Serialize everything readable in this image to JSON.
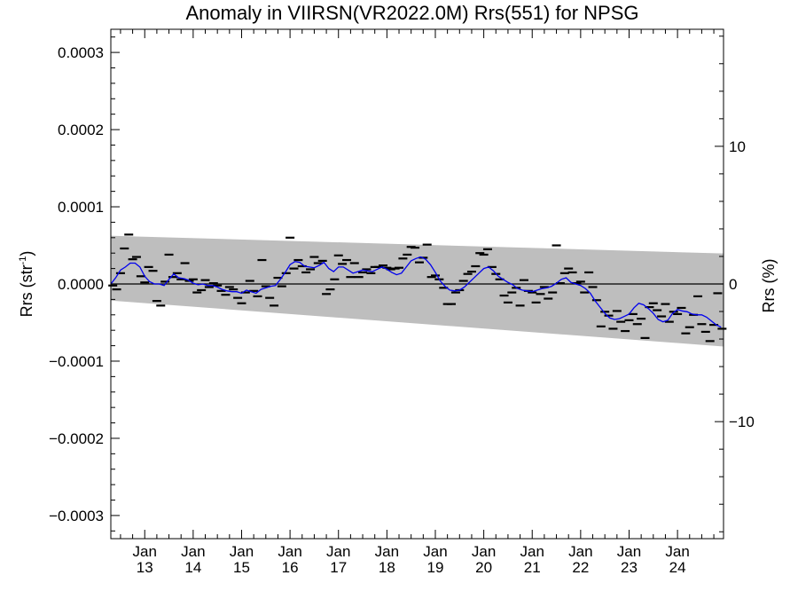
{
  "chart_data": {
    "type": "scatter",
    "title": "Anomaly in VIIRSN(VR2022.0M) Rrs(551) for NPSG",
    "ylabel": "Rrs (str",
    "ylabel_sup": "-1",
    "ylabel_close": ")",
    "y2label": "Rrs (%)",
    "xlim": [
      2012.3,
      2024.95
    ],
    "ylim": [
      -0.00033,
      0.00033
    ],
    "y2lim": [
      -18.5,
      18.5
    ],
    "y_ticks": [
      {
        "value": 0.0003,
        "label": "0.0003"
      },
      {
        "value": 0.0002,
        "label": "0.0002"
      },
      {
        "value": 0.0001,
        "label": "0.0001"
      },
      {
        "value": 0.0,
        "label": "0.0000"
      },
      {
        "value": -0.0001,
        "label": "−0.0001"
      },
      {
        "value": -0.0002,
        "label": "−0.0002"
      },
      {
        "value": -0.0003,
        "label": "−0.0003"
      }
    ],
    "y2_ticks": [
      {
        "value": 10,
        "label": "10"
      },
      {
        "value": 0,
        "label": "0"
      },
      {
        "value": -10,
        "label": "−10"
      }
    ],
    "x_ticks": [
      {
        "value": 2013,
        "month": "Jan",
        "year": "13"
      },
      {
        "value": 2014,
        "month": "Jan",
        "year": "14"
      },
      {
        "value": 2015,
        "month": "Jan",
        "year": "15"
      },
      {
        "value": 2016,
        "month": "Jan",
        "year": "16"
      },
      {
        "value": 2017,
        "month": "Jan",
        "year": "17"
      },
      {
        "value": 2018,
        "month": "Jan",
        "year": "18"
      },
      {
        "value": 2019,
        "month": "Jan",
        "year": "19"
      },
      {
        "value": 2020,
        "month": "Jan",
        "year": "20"
      },
      {
        "value": 2021,
        "month": "Jan",
        "year": "21"
      },
      {
        "value": 2022,
        "month": "Jan",
        "year": "22"
      },
      {
        "value": 2023,
        "month": "Jan",
        "year": "23"
      },
      {
        "value": 2024,
        "month": "Jan",
        "year": "24"
      }
    ],
    "band": {
      "x": [
        2012.3,
        2024.95
      ],
      "upper": [
        6.25e-05,
        3.95e-05
      ],
      "lower": [
        -2.15e-05,
        -8.1e-05
      ],
      "color": "#bebebe"
    },
    "zero_line_color": "#000000",
    "points_color": "#000000",
    "points": [
      [
        2012.34,
        -2e-06
      ],
      [
        2012.42,
        -7e-06
      ],
      [
        2012.5,
        1.4e-05
      ],
      [
        2012.58,
        4.6e-05
      ],
      [
        2012.67,
        6.4e-05
      ],
      [
        2012.75,
        3.2e-05
      ],
      [
        2012.83,
        3.5e-05
      ],
      [
        2012.92,
        1e-05
      ],
      [
        2013.0,
        2e-06
      ],
      [
        2013.08,
        2.2e-05
      ],
      [
        2013.17,
        1.7e-05
      ],
      [
        2013.25,
        -2.2e-05
      ],
      [
        2013.33,
        -2.8e-05
      ],
      [
        2013.42,
        3e-06
      ],
      [
        2013.5,
        3.8e-05
      ],
      [
        2013.58,
        9e-06
      ],
      [
        2013.67,
        1.4e-05
      ],
      [
        2013.75,
        6e-06
      ],
      [
        2013.83,
        2.7e-05
      ],
      [
        2013.92,
        4e-06
      ],
      [
        2014.0,
        6e-06
      ],
      [
        2014.08,
        -1.1e-05
      ],
      [
        2014.17,
        -8e-06
      ],
      [
        2014.25,
        5e-06
      ],
      [
        2014.33,
        -4e-06
      ],
      [
        2014.42,
        1e-06
      ],
      [
        2014.5,
        -2e-06
      ],
      [
        2014.58,
        -9e-06
      ],
      [
        2014.67,
        -1.4e-05
      ],
      [
        2014.75,
        -4e-06
      ],
      [
        2014.83,
        -7e-06
      ],
      [
        2014.92,
        -1.8e-05
      ],
      [
        2015.0,
        -2.5e-05
      ],
      [
        2015.08,
        -1.1e-05
      ],
      [
        2015.17,
        4e-06
      ],
      [
        2015.25,
        -9e-06
      ],
      [
        2015.33,
        -1.6e-05
      ],
      [
        2015.42,
        3.1e-05
      ],
      [
        2015.5,
        -3e-06
      ],
      [
        2015.58,
        -1.8e-05
      ],
      [
        2015.67,
        -2.8e-05
      ],
      [
        2015.75,
        8e-06
      ],
      [
        2015.83,
        -3e-06
      ],
      [
        2015.92,
        1.4e-05
      ],
      [
        2016.0,
        6e-05
      ],
      [
        2016.08,
        2e-05
      ],
      [
        2016.17,
        3.1e-05
      ],
      [
        2016.25,
        2.3e-05
      ],
      [
        2016.33,
        1.5e-05
      ],
      [
        2016.42,
        1.9e-05
      ],
      [
        2016.5,
        3.5e-05
      ],
      [
        2016.58,
        2.7e-05
      ],
      [
        2016.67,
        3e-05
      ],
      [
        2016.75,
        -1.3e-05
      ],
      [
        2016.83,
        -7e-06
      ],
      [
        2016.92,
        6e-06
      ],
      [
        2017.0,
        3.7e-05
      ],
      [
        2017.08,
        2.6e-05
      ],
      [
        2017.17,
        3.1e-05
      ],
      [
        2017.25,
        9e-06
      ],
      [
        2017.33,
        2.7e-05
      ],
      [
        2017.42,
        9e-06
      ],
      [
        2017.5,
        1.5e-05
      ],
      [
        2017.58,
        1.9e-05
      ],
      [
        2017.67,
        1.4e-05
      ],
      [
        2017.75,
        2.2e-05
      ],
      [
        2017.83,
        2.2e-05
      ],
      [
        2017.92,
        2.4e-05
      ],
      [
        2018.0,
        2.1e-05
      ],
      [
        2018.08,
        1.9e-05
      ],
      [
        2018.17,
        2e-05
      ],
      [
        2018.25,
        2.1e-05
      ],
      [
        2018.33,
        3.3e-05
      ],
      [
        2018.42,
        3.8e-05
      ],
      [
        2018.5,
        4.8e-05
      ],
      [
        2018.58,
        4.7e-05
      ],
      [
        2018.67,
        2.8e-05
      ],
      [
        2018.75,
        3.4e-05
      ],
      [
        2018.83,
        5.1e-05
      ],
      [
        2018.92,
        9e-06
      ],
      [
        2019.0,
        1.1e-05
      ],
      [
        2019.08,
        6e-06
      ],
      [
        2019.17,
        -5e-06
      ],
      [
        2019.25,
        -2.6e-05
      ],
      [
        2019.33,
        -2.6e-05
      ],
      [
        2019.42,
        -1.1e-05
      ],
      [
        2019.5,
        -8e-06
      ],
      [
        2019.58,
        4e-06
      ],
      [
        2019.67,
        1.3e-05
      ],
      [
        2019.75,
        1.6e-05
      ],
      [
        2019.83,
        2.3e-05
      ],
      [
        2019.92,
        4e-05
      ],
      [
        2020.0,
        3.8e-05
      ],
      [
        2020.08,
        4.5e-05
      ],
      [
        2020.17,
        2.2e-05
      ],
      [
        2020.25,
        1.3e-05
      ],
      [
        2020.33,
        6e-06
      ],
      [
        2020.42,
        -1.5e-05
      ],
      [
        2020.5,
        -2.4e-05
      ],
      [
        2020.58,
        -1.1e-05
      ],
      [
        2020.67,
        -5e-06
      ],
      [
        2020.75,
        -2.8e-05
      ],
      [
        2020.83,
        5e-06
      ],
      [
        2020.92,
        -9e-06
      ],
      [
        2021.0,
        -1.1e-05
      ],
      [
        2021.08,
        -2.4e-05
      ],
      [
        2021.17,
        -1.3e-05
      ],
      [
        2021.25,
        -4e-06
      ],
      [
        2021.33,
        -1.9e-05
      ],
      [
        2021.42,
        -1.1e-05
      ],
      [
        2021.5,
        5e-05
      ],
      [
        2021.58,
        1e-06
      ],
      [
        2021.67,
        1.4e-05
      ],
      [
        2021.75,
        2e-05
      ],
      [
        2021.83,
        1.5e-05
      ],
      [
        2021.92,
        1e-06
      ],
      [
        2022.0,
        3e-06
      ],
      [
        2022.08,
        -1.1e-05
      ],
      [
        2022.17,
        1.5e-05
      ],
      [
        2022.25,
        -4e-06
      ],
      [
        2022.33,
        -2.1e-05
      ],
      [
        2022.42,
        -5.5e-05
      ],
      [
        2022.5,
        -3.6e-05
      ],
      [
        2022.58,
        -4.1e-05
      ],
      [
        2022.67,
        -5.8e-05
      ],
      [
        2022.75,
        -3.5e-05
      ],
      [
        2022.83,
        -4.9e-05
      ],
      [
        2022.92,
        -6.1e-05
      ],
      [
        2023.0,
        -4.7e-05
      ],
      [
        2023.08,
        -3.9e-05
      ],
      [
        2023.17,
        -5.2e-05
      ],
      [
        2023.25,
        -4.5e-05
      ],
      [
        2023.33,
        -7e-05
      ],
      [
        2023.42,
        -3e-05
      ],
      [
        2023.5,
        -2.5e-05
      ],
      [
        2023.58,
        -3.4e-05
      ],
      [
        2023.67,
        -4.2e-05
      ],
      [
        2023.75,
        -2.6e-05
      ],
      [
        2023.83,
        -4.9e-05
      ],
      [
        2023.92,
        -3.6e-05
      ],
      [
        2024.0,
        -3.9e-05
      ],
      [
        2024.08,
        -3.1e-05
      ],
      [
        2024.17,
        -6.4e-05
      ],
      [
        2024.25,
        -5.6e-05
      ],
      [
        2024.33,
        -4e-05
      ],
      [
        2024.42,
        -1.6e-05
      ],
      [
        2024.5,
        -5.2e-05
      ],
      [
        2024.58,
        -6.2e-05
      ],
      [
        2024.67,
        -7.4e-05
      ],
      [
        2024.75,
        -5.3e-05
      ],
      [
        2024.83,
        -1.2e-05
      ],
      [
        2024.92,
        -5.8e-05
      ]
    ],
    "running_mean": {
      "color": "#0000ee",
      "points": [
        [
          2012.3,
          0.0
        ],
        [
          2012.4,
          8e-06
        ],
        [
          2012.5,
          1.8e-05
        ],
        [
          2012.6,
          2.2e-05
        ],
        [
          2012.7,
          2.7e-05
        ],
        [
          2012.8,
          2.7e-05
        ],
        [
          2012.9,
          2.2e-05
        ],
        [
          2013.0,
          1e-05
        ],
        [
          2013.1,
          3e-06
        ],
        [
          2013.2,
          0.0
        ],
        [
          2013.3,
          0.0
        ],
        [
          2013.4,
          -2e-06
        ],
        [
          2013.5,
          6e-06
        ],
        [
          2013.6,
          1.3e-05
        ],
        [
          2013.7,
          8e-06
        ],
        [
          2013.8,
          7e-06
        ],
        [
          2013.9,
          5e-06
        ],
        [
          2014.0,
          1e-06
        ],
        [
          2014.1,
          -1e-06
        ],
        [
          2014.2,
          0.0
        ],
        [
          2014.3,
          -2e-06
        ],
        [
          2014.4,
          -2e-06
        ],
        [
          2014.5,
          -4e-06
        ],
        [
          2014.6,
          -7e-06
        ],
        [
          2014.7,
          -9e-06
        ],
        [
          2014.8,
          -1e-05
        ],
        [
          2014.9,
          -1e-05
        ],
        [
          2015.0,
          -1.2e-05
        ],
        [
          2015.1,
          -8e-06
        ],
        [
          2015.2,
          -1e-05
        ],
        [
          2015.3,
          -1.2e-05
        ],
        [
          2015.4,
          -7e-06
        ],
        [
          2015.5,
          -5e-06
        ],
        [
          2015.6,
          -3e-06
        ],
        [
          2015.7,
          -2e-06
        ],
        [
          2015.8,
          6e-06
        ],
        [
          2015.9,
          1.5e-05
        ],
        [
          2016.0,
          2.5e-05
        ],
        [
          2016.1,
          2.9e-05
        ],
        [
          2016.2,
          2.8e-05
        ],
        [
          2016.3,
          2.3e-05
        ],
        [
          2016.4,
          2.2e-05
        ],
        [
          2016.5,
          2.1e-05
        ],
        [
          2016.6,
          2.4e-05
        ],
        [
          2016.7,
          2.8e-05
        ],
        [
          2016.8,
          2e-05
        ],
        [
          2016.9,
          1.6e-05
        ],
        [
          2017.0,
          2.2e-05
        ],
        [
          2017.1,
          2.2e-05
        ],
        [
          2017.2,
          1.8e-05
        ],
        [
          2017.3,
          1.4e-05
        ],
        [
          2017.4,
          1.6e-05
        ],
        [
          2017.5,
          1.8e-05
        ],
        [
          2017.6,
          1.7e-05
        ],
        [
          2017.7,
          1.6e-05
        ],
        [
          2017.8,
          1.9e-05
        ],
        [
          2017.9,
          2.2e-05
        ],
        [
          2018.0,
          1.9e-05
        ],
        [
          2018.1,
          1.5e-05
        ],
        [
          2018.2,
          1.2e-05
        ],
        [
          2018.3,
          1.4e-05
        ],
        [
          2018.4,
          2.2e-05
        ],
        [
          2018.5,
          3e-05
        ],
        [
          2018.6,
          3.3e-05
        ],
        [
          2018.7,
          3.5e-05
        ],
        [
          2018.8,
          3.2e-05
        ],
        [
          2018.9,
          2.5e-05
        ],
        [
          2019.0,
          1.5e-05
        ],
        [
          2019.1,
          4e-06
        ],
        [
          2019.2,
          -3e-06
        ],
        [
          2019.3,
          -8e-06
        ],
        [
          2019.4,
          -9e-06
        ],
        [
          2019.5,
          -8e-06
        ],
        [
          2019.6,
          -4e-06
        ],
        [
          2019.7,
          2e-06
        ],
        [
          2019.8,
          8e-06
        ],
        [
          2019.9,
          1.4e-05
        ],
        [
          2020.0,
          2e-05
        ],
        [
          2020.1,
          2.2e-05
        ],
        [
          2020.2,
          1.7e-05
        ],
        [
          2020.3,
          1e-05
        ],
        [
          2020.4,
          6e-06
        ],
        [
          2020.5,
          2e-06
        ],
        [
          2020.6,
          -1e-06
        ],
        [
          2020.7,
          -6e-06
        ],
        [
          2020.8,
          -8e-06
        ],
        [
          2020.9,
          -9e-06
        ],
        [
          2021.0,
          -1e-05
        ],
        [
          2021.1,
          -8e-06
        ],
        [
          2021.2,
          -6e-06
        ],
        [
          2021.3,
          -5e-06
        ],
        [
          2021.4,
          -3e-06
        ],
        [
          2021.5,
          1e-06
        ],
        [
          2021.6,
          6e-06
        ],
        [
          2021.7,
          8e-06
        ],
        [
          2021.8,
          2e-06
        ],
        [
          2021.9,
          0.0
        ],
        [
          2022.0,
          -2e-06
        ],
        [
          2022.1,
          -6e-06
        ],
        [
          2022.2,
          -1.2e-05
        ],
        [
          2022.3,
          -2.2e-05
        ],
        [
          2022.4,
          -3e-05
        ],
        [
          2022.5,
          -3.8e-05
        ],
        [
          2022.6,
          -4.4e-05
        ],
        [
          2022.7,
          -4.6e-05
        ],
        [
          2022.8,
          -4.5e-05
        ],
        [
          2022.9,
          -4.2e-05
        ],
        [
          2023.0,
          -3.9e-05
        ],
        [
          2023.1,
          -3.1e-05
        ],
        [
          2023.2,
          -2.5e-05
        ],
        [
          2023.3,
          -2.7e-05
        ],
        [
          2023.4,
          -3.2e-05
        ],
        [
          2023.5,
          -3.8e-05
        ],
        [
          2023.6,
          -4.6e-05
        ],
        [
          2023.7,
          -4.9e-05
        ],
        [
          2023.8,
          -4.7e-05
        ],
        [
          2023.9,
          -3.8e-05
        ],
        [
          2024.0,
          -3.3e-05
        ],
        [
          2024.1,
          -3.5e-05
        ],
        [
          2024.2,
          -3.6e-05
        ],
        [
          2024.3,
          -3.9e-05
        ],
        [
          2024.4,
          -4e-05
        ],
        [
          2024.5,
          -4e-05
        ],
        [
          2024.6,
          -4.3e-05
        ],
        [
          2024.7,
          -4.8e-05
        ],
        [
          2024.8,
          -5.3e-05
        ],
        [
          2024.9,
          -5.6e-05
        ]
      ]
    }
  }
}
